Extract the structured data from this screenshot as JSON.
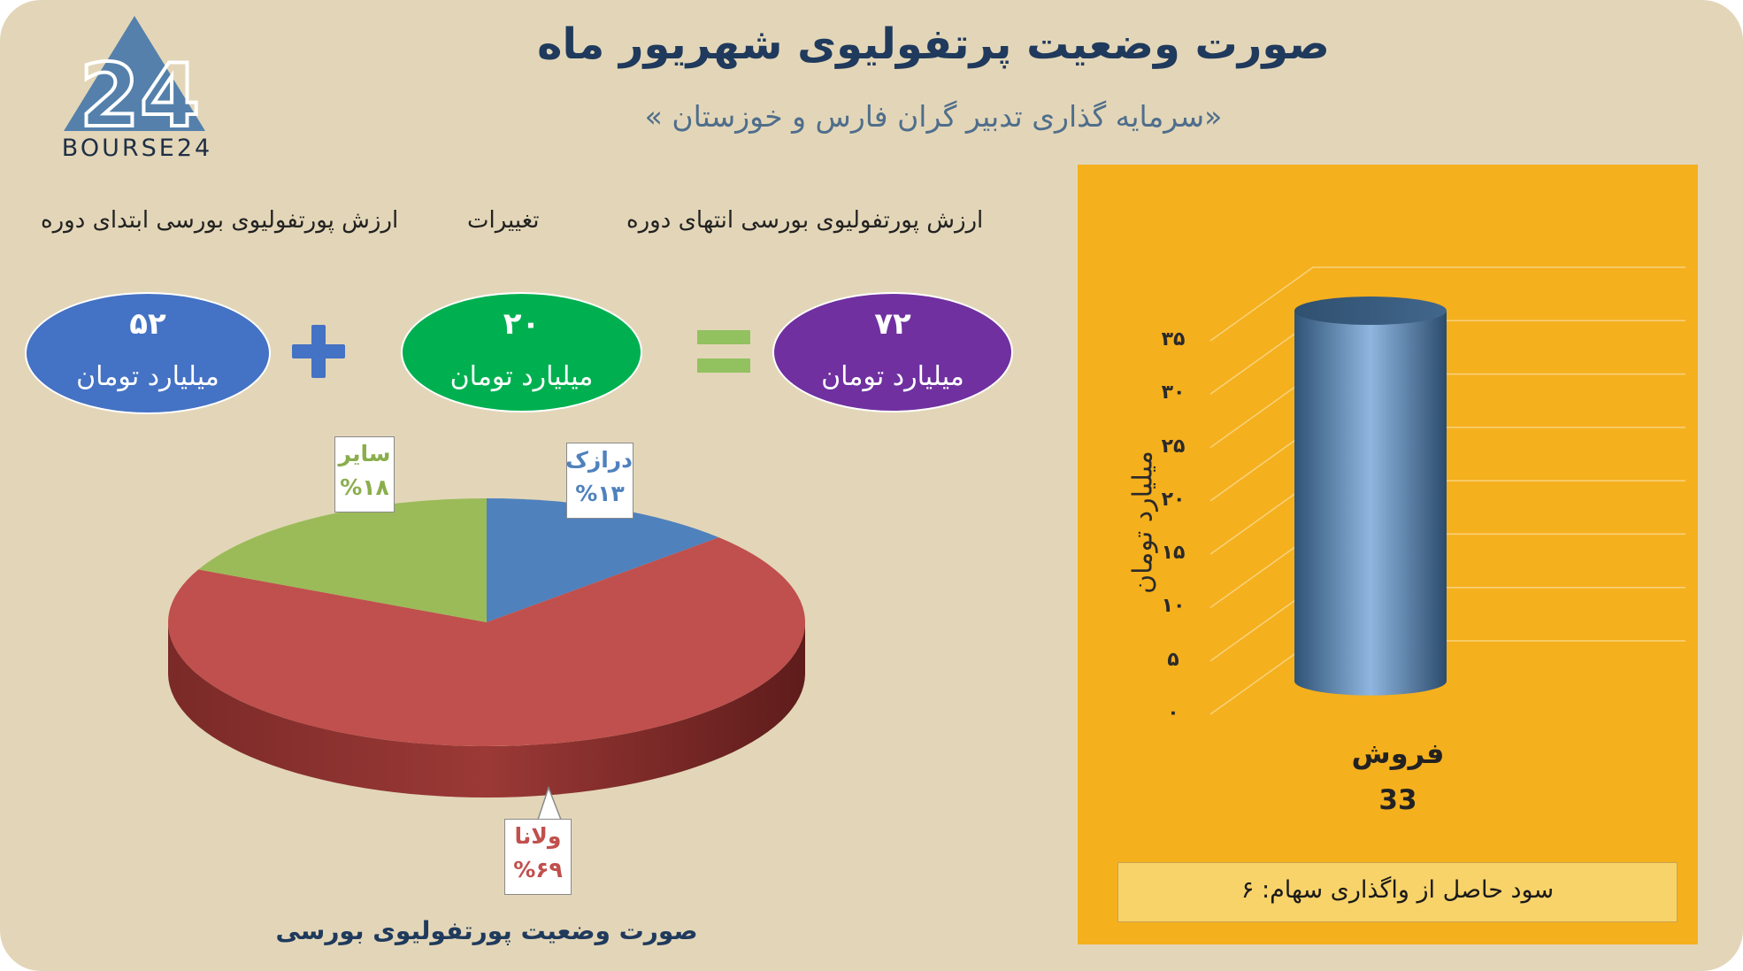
{
  "logo": {
    "text": "BOURSE24",
    "glyph": "24"
  },
  "header": {
    "title": "صورت وضعیت پرتفولیوی شهریور ماه",
    "subtitle": "«سرمایه گذاری تدبیر گران فارس و خوزستان »"
  },
  "equation": {
    "labels": {
      "start": "ارزش پورتفولیوی بورسی ابتدای دوره",
      "change": "تغییرات",
      "end": "ارزش پورتفولیوی بورسی انتهای دوره"
    },
    "start": {
      "value": "۵۲",
      "unit": "میلیارد تومان",
      "color": "#4472c4"
    },
    "change": {
      "value": "۲۰",
      "unit": "میلیارد تومان",
      "color": "#00b050"
    },
    "end": {
      "value": "۷۲",
      "unit": "میلیارد تومان",
      "color": "#7030a0"
    },
    "plus_icon": "plus-icon",
    "equals_icon": "equals-icon"
  },
  "chart_data": [
    {
      "type": "pie",
      "title": "صورت وضعیت پورتفولیوی بورسی",
      "slices": [
        {
          "label": "درازک",
          "value": 13,
          "value_label": "%۱۳",
          "color": "#4f81bd"
        },
        {
          "label": "ولانا",
          "value": 69,
          "value_label": "%۶۹",
          "color": "#c0504d"
        },
        {
          "label": "سایر",
          "value": 18,
          "value_label": "%۱۸",
          "color": "#9bbb59"
        }
      ]
    },
    {
      "type": "bar",
      "categories": [
        "فروش"
      ],
      "values": [
        33
      ],
      "value_labels": [
        "33"
      ],
      "ylabel": "میلیارد تومان",
      "ylim": [
        0,
        35
      ],
      "yticks": [
        0,
        5,
        10,
        15,
        20,
        25,
        30,
        35
      ],
      "ytick_labels": [
        "۰",
        "۵",
        "۱۰",
        "۱۵",
        "۲۰",
        "۲۵",
        "۳۰",
        "۳۵"
      ],
      "bar_color": "#4f81bd",
      "grid": true
    }
  ],
  "profit_box": {
    "text": "سود حاصل از واگذاری سهام: ۶"
  },
  "colors": {
    "background": "#e3d6b8",
    "panel": "#f5b01e",
    "title": "#1f3a5c"
  }
}
